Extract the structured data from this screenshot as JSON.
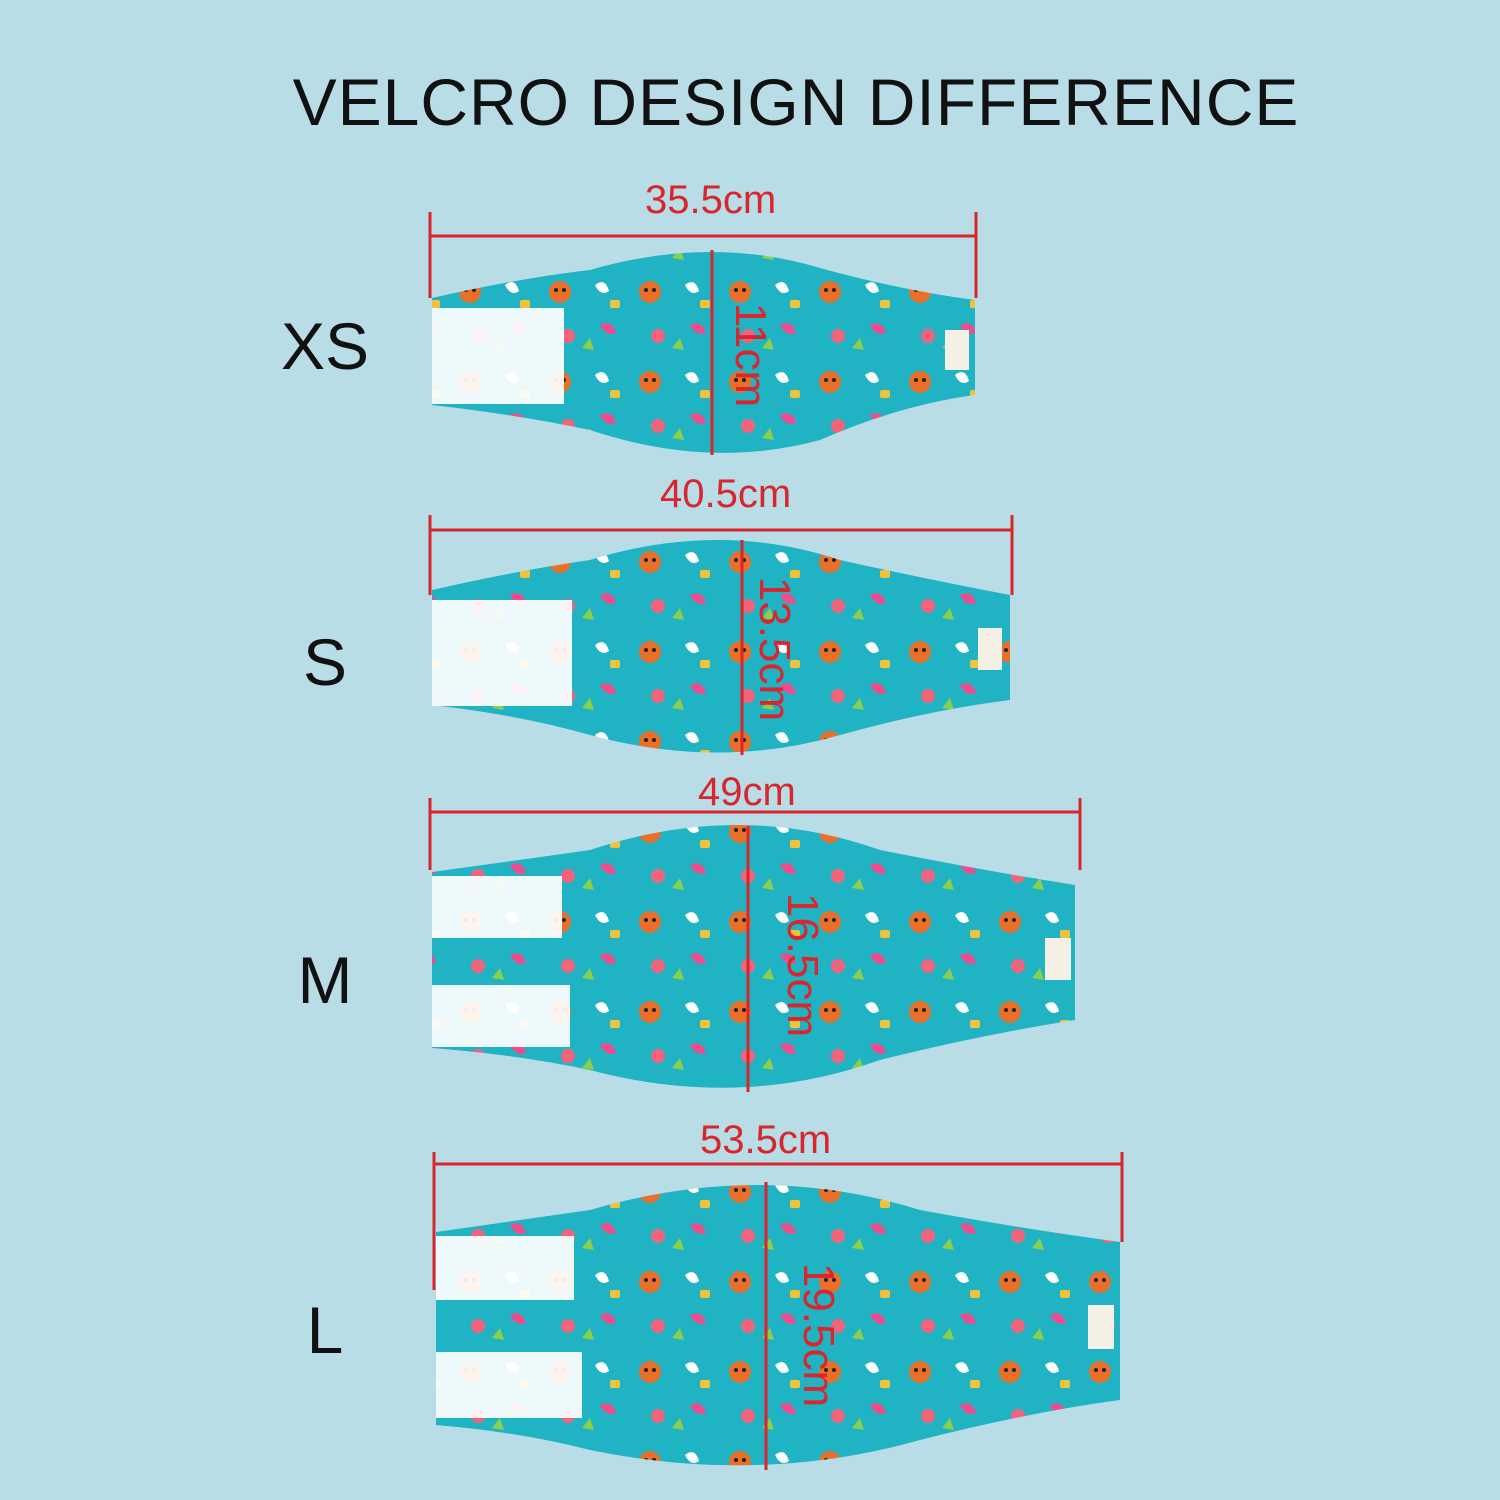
{
  "title": "VELCRO DESIGN DIFFERENCE",
  "colors": {
    "background": "#b9dde6",
    "fabric": "#1fb3c4",
    "measure_line": "#d8262c",
    "velcro": "#ffffff"
  },
  "sizes": [
    {
      "label": "XS",
      "width": "35.5cm",
      "height": "11cm"
    },
    {
      "label": "S",
      "width": "40.5cm",
      "height": "13.5cm"
    },
    {
      "label": "M",
      "width": "49cm",
      "height": "16.5cm"
    },
    {
      "label": "L",
      "width": "53.5cm",
      "height": "19.5cm"
    }
  ]
}
